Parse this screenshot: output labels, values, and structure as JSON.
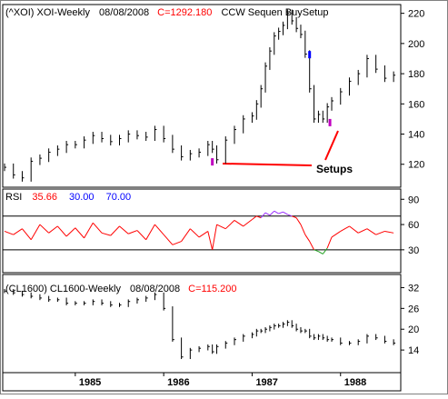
{
  "chart_data": [
    {
      "type": "ohlc",
      "panel": "price",
      "header": {
        "symbol": "(^XOI) XOI-Weekly",
        "date": "08/08/2008",
        "close_label": "C=1292.180",
        "study": "CCW Sequen BuySetup"
      },
      "y_ticks": [
        120,
        140,
        160,
        180,
        200,
        220
      ],
      "ylim": [
        106,
        224
      ],
      "x_tick_labels": [
        "1985",
        "1986",
        "1987",
        "1988"
      ],
      "xlim": [
        1984.2,
        1988.65
      ],
      "x": [
        1984.2,
        1984.3,
        1984.4,
        1984.5,
        1984.6,
        1984.7,
        1984.8,
        1984.9,
        1985.0,
        1985.1,
        1985.2,
        1985.3,
        1985.4,
        1985.5,
        1985.6,
        1985.7,
        1985.8,
        1985.9,
        1986.0,
        1986.1,
        1986.2,
        1986.3,
        1986.4,
        1986.5,
        1986.55,
        1986.6,
        1986.7,
        1986.8,
        1986.9,
        1987.0,
        1987.05,
        1987.1,
        1987.15,
        1987.2,
        1987.25,
        1987.3,
        1987.35,
        1987.4,
        1987.45,
        1987.5,
        1987.55,
        1987.6,
        1987.65,
        1987.7,
        1987.75,
        1987.8,
        1987.85,
        1987.9,
        1988.0,
        1988.1,
        1988.2,
        1988.3,
        1988.4,
        1988.5,
        1988.6
      ],
      "close": [
        118,
        113,
        111,
        122,
        124,
        128,
        130,
        133,
        133,
        136,
        139,
        137,
        135,
        137,
        140,
        139,
        138,
        143,
        137,
        130,
        125,
        127,
        128,
        133,
        130,
        123,
        136,
        143,
        150,
        152,
        160,
        170,
        185,
        195,
        205,
        208,
        212,
        220,
        215,
        210,
        206,
        193,
        170,
        150,
        153,
        150,
        158,
        162,
        168,
        175,
        180,
        190,
        183,
        177,
        179
      ],
      "setup_markers": [
        {
          "x": 1986.55,
          "value": 121,
          "color": "#c000c0"
        },
        {
          "x": 1987.65,
          "value": 192,
          "color": "#0000ff"
        },
        {
          "x": 1987.88,
          "value": 147,
          "color": "#c000c0"
        }
      ],
      "annotation": {
        "text": "Setups"
      }
    },
    {
      "type": "line",
      "panel": "rsi",
      "header": {
        "name": "RSI",
        "value": "35.66",
        "lower": "30.00",
        "upper": "70.00"
      },
      "y_ticks": [
        30,
        60,
        90
      ],
      "ylim": [
        5,
        100
      ],
      "levels": [
        30,
        70
      ],
      "x": [
        1984.2,
        1984.3,
        1984.4,
        1984.5,
        1984.6,
        1984.7,
        1984.8,
        1984.9,
        1985.0,
        1985.1,
        1985.2,
        1985.3,
        1985.4,
        1985.5,
        1985.6,
        1985.7,
        1985.8,
        1985.9,
        1986.0,
        1986.1,
        1986.2,
        1986.3,
        1986.4,
        1986.5,
        1986.55,
        1986.6,
        1986.7,
        1986.8,
        1986.9,
        1987.0,
        1987.05,
        1987.1,
        1987.15,
        1987.2,
        1987.25,
        1987.3,
        1987.35,
        1987.4,
        1987.45,
        1987.5,
        1987.55,
        1987.6,
        1987.65,
        1987.7,
        1987.75,
        1987.8,
        1987.85,
        1987.9,
        1988.0,
        1988.1,
        1988.2,
        1988.3,
        1988.4,
        1988.5,
        1988.6
      ],
      "values": [
        52,
        48,
        55,
        42,
        60,
        50,
        58,
        46,
        56,
        44,
        62,
        50,
        47,
        58,
        49,
        53,
        42,
        60,
        48,
        36,
        40,
        55,
        45,
        52,
        30,
        60,
        55,
        65,
        58,
        66,
        70,
        68,
        74,
        71,
        76,
        73,
        75,
        72,
        70,
        68,
        60,
        48,
        40,
        30,
        28,
        25,
        32,
        45,
        52,
        58,
        50,
        55,
        48,
        52,
        50
      ],
      "overbought_color": "#9b30ff",
      "oversold_color": "#20a020",
      "line_color": "#ff0000"
    },
    {
      "type": "ohlc",
      "panel": "comparison",
      "header": {
        "symbol": "(CL1600) CL1600-Weekly",
        "date": "08/08/2008",
        "close_label": "C=115.200"
      },
      "y_ticks": [
        14,
        20,
        26,
        32
      ],
      "ylim": [
        8,
        35
      ],
      "x": [
        1984.2,
        1984.3,
        1984.4,
        1984.5,
        1984.6,
        1984.7,
        1984.8,
        1984.9,
        1985.0,
        1985.1,
        1985.2,
        1985.3,
        1985.4,
        1985.5,
        1985.6,
        1985.7,
        1985.8,
        1985.9,
        1986.0,
        1986.1,
        1986.2,
        1986.3,
        1986.4,
        1986.5,
        1986.55,
        1986.6,
        1986.7,
        1986.8,
        1986.9,
        1987.0,
        1987.05,
        1987.1,
        1987.15,
        1987.2,
        1987.25,
        1987.3,
        1987.35,
        1987.4,
        1987.45,
        1987.5,
        1987.55,
        1987.6,
        1987.65,
        1987.7,
        1987.75,
        1987.8,
        1987.85,
        1987.9,
        1988.0,
        1988.1,
        1988.2,
        1988.3,
        1988.4,
        1988.5,
        1988.6
      ],
      "close": [
        31,
        30.5,
        30,
        29.5,
        29,
        28.5,
        28.5,
        27.5,
        27.5,
        27.5,
        28,
        27.5,
        27,
        27,
        28,
        28.5,
        29,
        30,
        26,
        17,
        12,
        14,
        14.5,
        15,
        13.5,
        15,
        16,
        17,
        18,
        18.5,
        19.5,
        19.5,
        20,
        20.5,
        21,
        21,
        21.5,
        22,
        21,
        20,
        19.5,
        19.5,
        18,
        17.5,
        18,
        17.5,
        17,
        17,
        16,
        16,
        16.5,
        18,
        17.5,
        16.5,
        16
      ]
    }
  ]
}
